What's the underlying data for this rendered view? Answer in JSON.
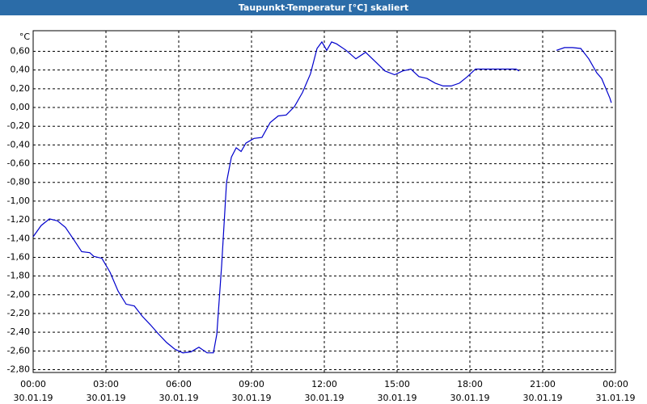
{
  "chart_data": {
    "type": "line",
    "title": "Taupunkt-Temperatur [°C] skaliert",
    "y_unit": "°C",
    "color": "#0000cc",
    "grid": true,
    "xlim": [
      0,
      24
    ],
    "ylim": [
      -2.83,
      0.82
    ],
    "xticks": [
      {
        "value": 0,
        "label": "00:00\n30.01.19"
      },
      {
        "value": 3,
        "label": "03:00\n30.01.19"
      },
      {
        "value": 6,
        "label": "06:00\n30.01.19"
      },
      {
        "value": 9,
        "label": "09:00\n30.01.19"
      },
      {
        "value": 12,
        "label": "12:00\n30.01.19"
      },
      {
        "value": 15,
        "label": "15:00\n30.01.19"
      },
      {
        "value": 18,
        "label": "18:00\n30.01.19"
      },
      {
        "value": 21,
        "label": "21:00\n30.01.19"
      },
      {
        "value": 24,
        "label": "00:00\n31.01.19"
      }
    ],
    "yticks": [
      {
        "value": 0.6,
        "label": "0,60"
      },
      {
        "value": 0.4,
        "label": "0,40"
      },
      {
        "value": 0.2,
        "label": "0,20"
      },
      {
        "value": 0,
        "label": "0,00"
      },
      {
        "value": -0.2,
        "label": "-0,20"
      },
      {
        "value": -0.4,
        "label": "-0,40"
      },
      {
        "value": -0.6,
        "label": "-0,60"
      },
      {
        "value": -0.8,
        "label": "-0,80"
      },
      {
        "value": -1,
        "label": "-1,00"
      },
      {
        "value": -1.2,
        "label": "-1,20"
      },
      {
        "value": -1.4,
        "label": "-1,40"
      },
      {
        "value": -1.6,
        "label": "-1,60"
      },
      {
        "value": -1.8,
        "label": "-1,80"
      },
      {
        "value": -2,
        "label": "-2,00"
      },
      {
        "value": -2.2,
        "label": "-2,20"
      },
      {
        "value": -2.4,
        "label": "-2,40"
      },
      {
        "value": -2.6,
        "label": "-2,60"
      },
      {
        "value": -2.8,
        "label": "-2,80"
      }
    ],
    "x": [
      0,
      0.33,
      0.67,
      1,
      1.33,
      1.67,
      2,
      2.33,
      2.5,
      2.83,
      3.17,
      3.5,
      3.83,
      4.17,
      4.5,
      4.83,
      5.17,
      5.5,
      5.83,
      6.17,
      6.5,
      6.83,
      7.17,
      7.43,
      7.57,
      7.77,
      7.97,
      8.17,
      8.37,
      8.57,
      8.77,
      9.1,
      9.43,
      9.77,
      10.1,
      10.43,
      10.77,
      11.1,
      11.43,
      11.7,
      11.9,
      12.1,
      12.3,
      12.5,
      12.9,
      13.3,
      13.7,
      14.1,
      14.5,
      14.9,
      15.23,
      15.57,
      15.9,
      16.23,
      16.57,
      16.9,
      17.23,
      17.57,
      17.9,
      18.23,
      18.57,
      19.23,
      19.9,
      20.03,
      20.8,
      21.57,
      21.9,
      22.23,
      22.57,
      22.9,
      23.23,
      23.43,
      23.77,
      23.83
    ],
    "values": [
      -1.38,
      -1.26,
      -1.19,
      -1.21,
      -1.28,
      -1.41,
      -1.54,
      -1.55,
      -1.59,
      -1.61,
      -1.76,
      -1.96,
      -2.1,
      -2.12,
      -2.23,
      -2.32,
      -2.42,
      -2.51,
      -2.58,
      -2.62,
      -2.61,
      -2.56,
      -2.62,
      -2.62,
      -2.42,
      -1.68,
      -0.8,
      -0.53,
      -0.43,
      -0.47,
      -0.38,
      -0.33,
      -0.32,
      -0.16,
      -0.09,
      -0.08,
      0.01,
      0.16,
      0.36,
      0.63,
      0.7,
      0.61,
      0.7,
      0.68,
      0.61,
      0.52,
      0.59,
      0.49,
      0.39,
      0.35,
      0.39,
      0.41,
      0.33,
      0.31,
      0.26,
      0.23,
      0.23,
      0.26,
      0.33,
      0.41,
      0.41,
      0.41,
      0.41,
      0.39,
      null,
      0.61,
      0.64,
      0.64,
      0.63,
      0.52,
      0.37,
      0.31,
      0.1,
      0.05
    ]
  }
}
